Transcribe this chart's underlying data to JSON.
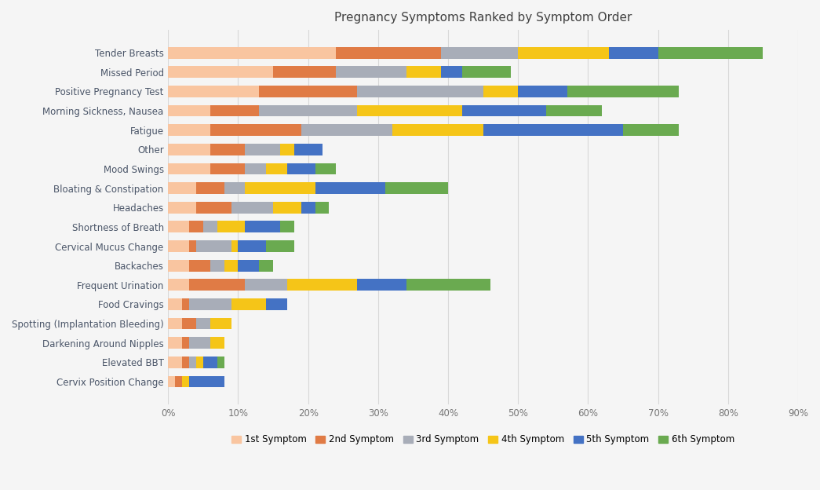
{
  "title": "Pregnancy Symptoms Ranked by Symptom Order",
  "categories": [
    "Tender Breasts",
    "Missed Period",
    "Positive Pregnancy Test",
    "Morning Sickness, Nausea",
    "Fatigue",
    "Other",
    "Mood Swings",
    "Bloating & Constipation",
    "Headaches",
    "Shortness of Breath",
    "Cervical Mucus Change",
    "Backaches",
    "Frequent Urination",
    "Food Cravings",
    "Spotting (Implantation Bleeding)",
    "Darkening Around Nipples",
    "Elevated BBT",
    "Cervix Position Change"
  ],
  "symptom_labels": [
    "1st Symptom",
    "2nd Symptom",
    "3rd Symptom",
    "4th Symptom",
    "5th Symptom",
    "6th Symptom"
  ],
  "colors": [
    "#f9c5a0",
    "#e07b45",
    "#a8adb8",
    "#f5c518",
    "#4472c4",
    "#6aaa50"
  ],
  "data": [
    [
      24,
      15,
      11,
      13,
      7,
      15
    ],
    [
      15,
      9,
      10,
      5,
      3,
      7
    ],
    [
      13,
      14,
      18,
      5,
      7,
      16
    ],
    [
      6,
      7,
      14,
      15,
      12,
      8
    ],
    [
      6,
      13,
      13,
      13,
      20,
      8
    ],
    [
      6,
      5,
      5,
      2,
      4,
      0
    ],
    [
      6,
      5,
      3,
      3,
      4,
      3
    ],
    [
      4,
      4,
      3,
      10,
      10,
      9
    ],
    [
      4,
      5,
      6,
      4,
      2,
      2
    ],
    [
      3,
      2,
      2,
      4,
      5,
      2
    ],
    [
      3,
      1,
      5,
      1,
      4,
      4
    ],
    [
      3,
      3,
      2,
      2,
      3,
      2
    ],
    [
      3,
      8,
      6,
      10,
      7,
      12
    ],
    [
      2,
      1,
      6,
      5,
      3,
      0
    ],
    [
      2,
      2,
      2,
      3,
      0,
      0
    ],
    [
      2,
      1,
      3,
      2,
      0,
      0
    ],
    [
      2,
      1,
      1,
      1,
      2,
      1
    ],
    [
      1,
      1,
      0,
      1,
      5,
      0
    ]
  ],
  "background_color": "#f5f5f5",
  "plot_bg": "#f5f5f5",
  "xlim": [
    0,
    90
  ],
  "xticks": [
    0,
    10,
    20,
    30,
    40,
    50,
    60,
    70,
    80,
    90
  ],
  "xticklabels": [
    "0%",
    "10%",
    "20%",
    "30%",
    "40%",
    "50%",
    "60%",
    "70%",
    "80%",
    "90%"
  ],
  "figsize": [
    10.45,
    6.24
  ],
  "dpi": 100,
  "bar_height": 0.6,
  "title_fontsize": 11,
  "tick_fontsize": 8.5,
  "label_color": "#4a5568",
  "grid_color": "#d8d8d8"
}
